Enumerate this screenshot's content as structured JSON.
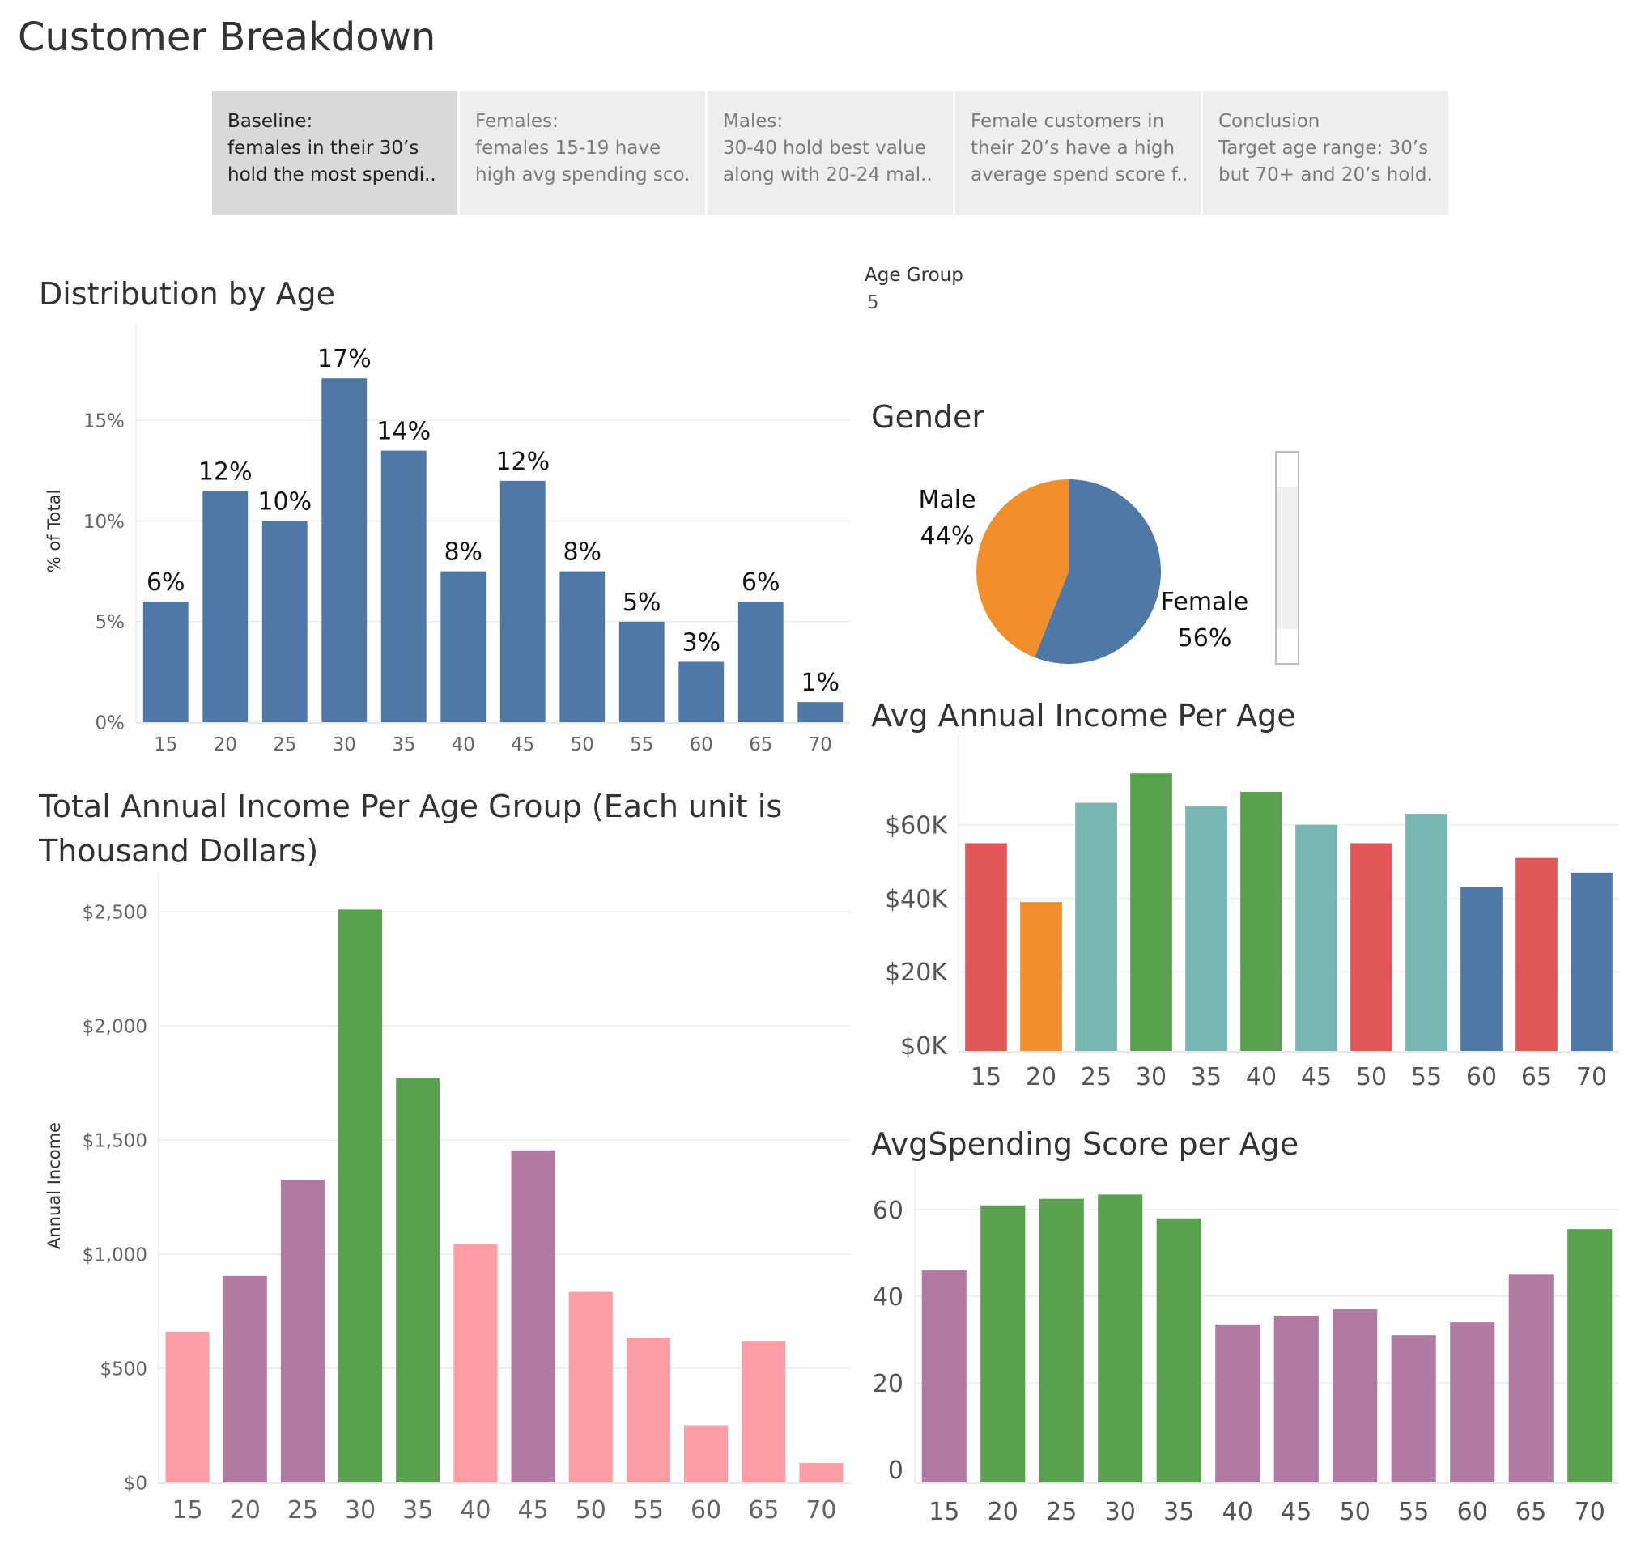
{
  "page": {
    "title": "Customer Breakdown"
  },
  "story": {
    "points": [
      {
        "line1": "Baseline:",
        "line2": "females in their 30’s",
        "line3": "hold the most spendi..",
        "active": true
      },
      {
        "line1": "Females:",
        "line2": "females 15-19 have",
        "line3": "high avg spending sco..",
        "active": false
      },
      {
        "line1": "Males:",
        "line2": "30-40 hold best value",
        "line3": "along with 20-24 mal..",
        "active": false
      },
      {
        "line1": "Female customers in",
        "line2": "their 20’s have a high",
        "line3": "average spend score f..",
        "active": false
      },
      {
        "line1": "Conclusion",
        "line2": "Target age range: 30’s",
        "line3": "but 70+ and 20’s hold..",
        "active": false
      }
    ]
  },
  "filter": {
    "label": "Age Group",
    "value": "5"
  },
  "colors": {
    "blue": "#4e79a7",
    "orange": "#f28e2b",
    "teal": "#76b7b2",
    "green": "#59a14f",
    "red": "#e15759",
    "purple": "#b07aa1",
    "pink": "#ff9da7",
    "grid": "#ececec",
    "axis_text": "#666666"
  },
  "chart_data": [
    {
      "id": "age-dist",
      "type": "bar",
      "title": "Distribution by Age",
      "ylabel": "% of Total",
      "xlabel": "",
      "categories": [
        "15",
        "20",
        "25",
        "30",
        "35",
        "40",
        "45",
        "50",
        "55",
        "60",
        "65",
        "70"
      ],
      "values": [
        6,
        11.5,
        10,
        17.1,
        13.5,
        7.5,
        12,
        7.5,
        5,
        3,
        6,
        1
      ],
      "data_labels": [
        "6%",
        "12%",
        "10%",
        "17%",
        "14%",
        "8%",
        "12%",
        "8%",
        "5%",
        "3%",
        "6%",
        "1%"
      ],
      "ylim": [
        0,
        19
      ],
      "yticks": [
        0,
        5,
        10,
        15
      ],
      "ytick_labels": [
        "0%",
        "5%",
        "10%",
        "15%"
      ],
      "bar_color": "#4e79a7",
      "grid": true
    },
    {
      "id": "total-income",
      "type": "bar",
      "title_line1": "Total Annual Income Per Age Group (Each unit is",
      "title_line2": "Thousand Dollars)",
      "ylabel": "Annual Income",
      "xlabel": "",
      "categories": [
        "15",
        "20",
        "25",
        "30",
        "35",
        "40",
        "45",
        "50",
        "55",
        "60",
        "65",
        "70"
      ],
      "values": [
        660,
        905,
        1325,
        2510,
        1770,
        1045,
        1455,
        835,
        635,
        250,
        620,
        85
      ],
      "ylim": [
        0,
        2600
      ],
      "yticks": [
        0,
        500,
        1000,
        1500,
        2000,
        2500
      ],
      "ytick_labels": [
        "$0",
        "$500",
        "$1,000",
        "$1,500",
        "$2,000",
        "$2,500"
      ],
      "bar_colors": [
        "#ff9da7",
        "#b07aa1",
        "#b07aa1",
        "#59a14f",
        "#59a14f",
        "#ff9da7",
        "#b07aa1",
        "#ff9da7",
        "#ff9da7",
        "#ff9da7",
        "#ff9da7",
        "#ff9da7"
      ],
      "grid": true
    },
    {
      "id": "gender",
      "type": "pie",
      "title": "Gender",
      "slices": [
        {
          "name": "Female",
          "value": 56,
          "label": "56%",
          "color": "#4e79a7"
        },
        {
          "name": "Male",
          "value": 44,
          "label": "44%",
          "color": "#f28e2b"
        }
      ]
    },
    {
      "id": "avg-income",
      "type": "bar",
      "title": "Avg Annual Income Per Age",
      "xlabel": "",
      "ylabel": "",
      "categories": [
        "15",
        "20",
        "25",
        "30",
        "35",
        "40",
        "45",
        "50",
        "55",
        "60",
        "65",
        "70"
      ],
      "values": [
        55000,
        39000,
        66000,
        74000,
        65000,
        69000,
        60000,
        55000,
        63000,
        43000,
        51000,
        47000
      ],
      "ylim": [
        -1500,
        80000
      ],
      "yticks": [
        0,
        20000,
        40000,
        60000
      ],
      "ytick_labels": [
        "$0K",
        "$20K",
        "$40K",
        "$60K"
      ],
      "bar_colors": [
        "#e15759",
        "#f28e2b",
        "#76b7b2",
        "#59a14f",
        "#76b7b2",
        "#59a14f",
        "#76b7b2",
        "#e15759",
        "#76b7b2",
        "#4e79a7",
        "#e15759",
        "#4e79a7"
      ],
      "grid": true
    },
    {
      "id": "avg-spending",
      "type": "bar",
      "title": "AvgSpending Score per Age",
      "xlabel": "",
      "ylabel": "",
      "categories": [
        "15",
        "20",
        "25",
        "30",
        "35",
        "40",
        "45",
        "50",
        "55",
        "60",
        "65",
        "70"
      ],
      "values": [
        46,
        61,
        62.5,
        63.5,
        58,
        33.5,
        35.5,
        37,
        31,
        34,
        45,
        55.5
      ],
      "ylim": [
        -3,
        66
      ],
      "yticks": [
        0,
        20,
        40,
        60
      ],
      "ytick_labels": [
        "0",
        "20",
        "40",
        "60"
      ],
      "bar_colors": [
        "#b07aa1",
        "#59a14f",
        "#59a14f",
        "#59a14f",
        "#59a14f",
        "#b07aa1",
        "#b07aa1",
        "#b07aa1",
        "#b07aa1",
        "#b07aa1",
        "#b07aa1",
        "#59a14f"
      ],
      "grid": true
    }
  ]
}
